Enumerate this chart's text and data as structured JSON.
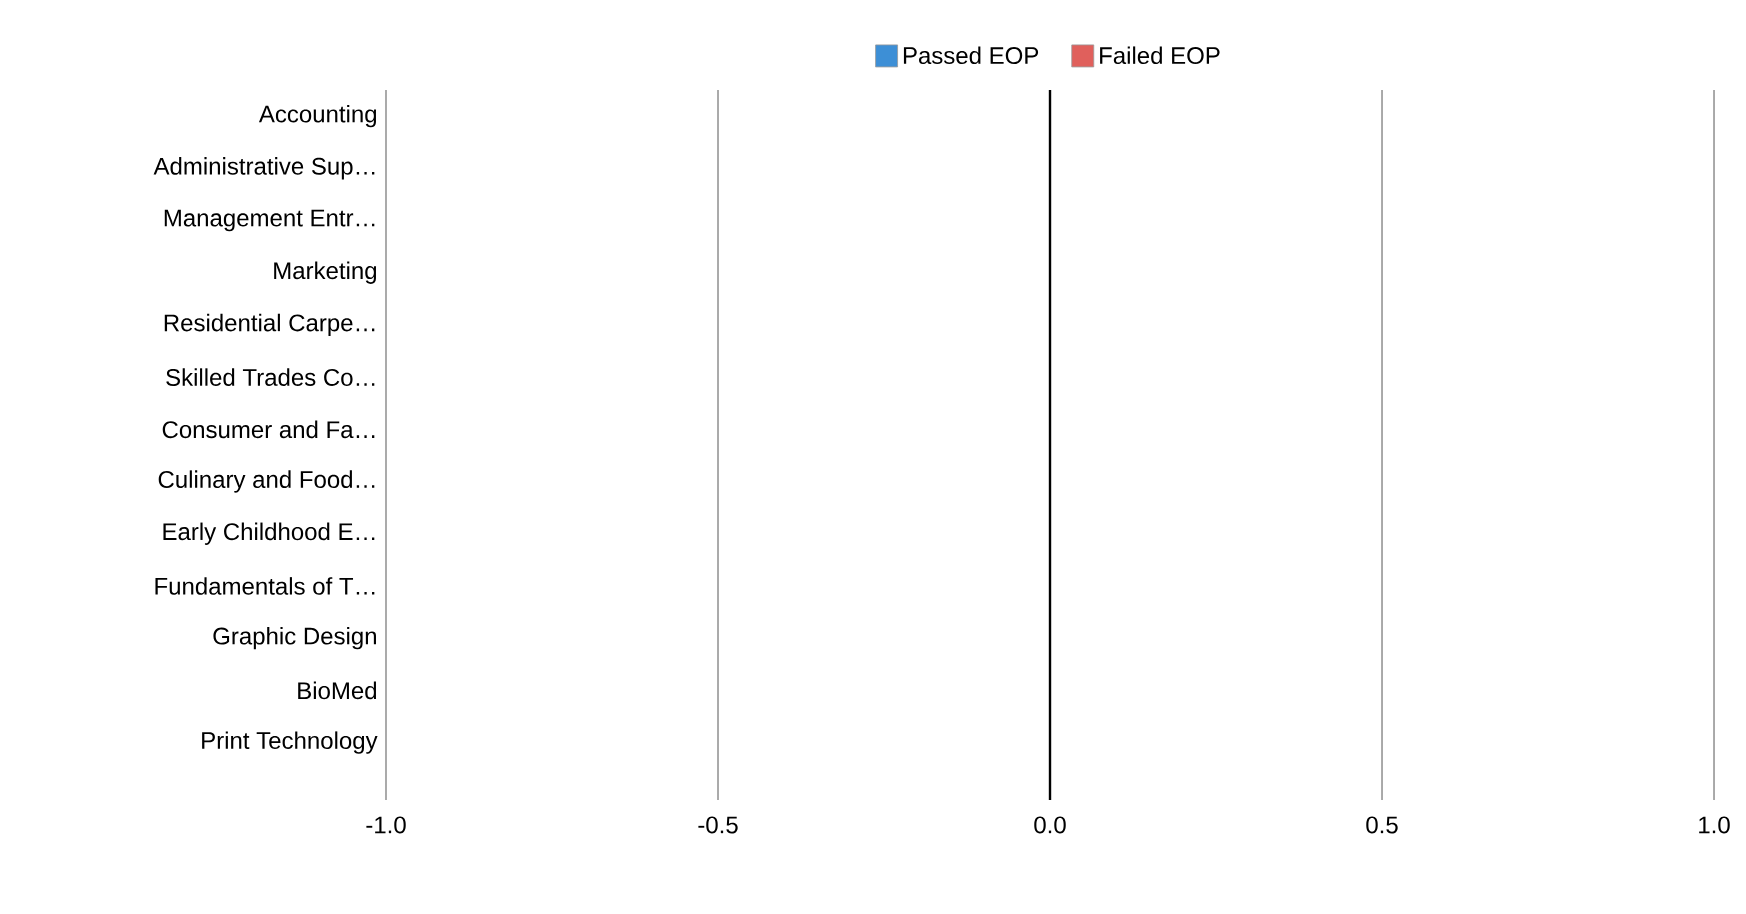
{
  "chart_data": {
    "type": "bar",
    "orientation": "horizontal",
    "legend": "top",
    "grid": "x",
    "categories": [
      "Accounting",
      "Administrative Sup…",
      "Management Entr…",
      "Marketing",
      "Residential Carpe…",
      "Skilled Trades Co…",
      "Consumer and Fa…",
      "Culinary and Food…",
      "Early Childhood E…",
      "Fundamentals of T…",
      "Graphic Design",
      "BioMed",
      "Print Technology"
    ],
    "series": [
      {
        "name": "Passed EOP",
        "color": "#3d8fd6",
        "values": [
          0,
          0,
          0,
          0,
          0,
          0,
          0,
          0,
          0,
          0,
          0,
          0,
          0
        ]
      },
      {
        "name": "Failed EOP",
        "color": "#e0605c",
        "values": [
          0,
          0,
          0,
          0,
          0,
          0,
          0,
          0,
          0,
          0,
          0,
          0,
          0
        ]
      }
    ],
    "xlim": [
      -1,
      1
    ],
    "xticks": [
      {
        "value": -1,
        "label": "-1.0"
      },
      {
        "value": -0.5,
        "label": "-0.5"
      },
      {
        "value": 0,
        "label": "0.0"
      },
      {
        "value": 0.5,
        "label": "0.5"
      },
      {
        "value": 1,
        "label": "1.0"
      }
    ]
  }
}
